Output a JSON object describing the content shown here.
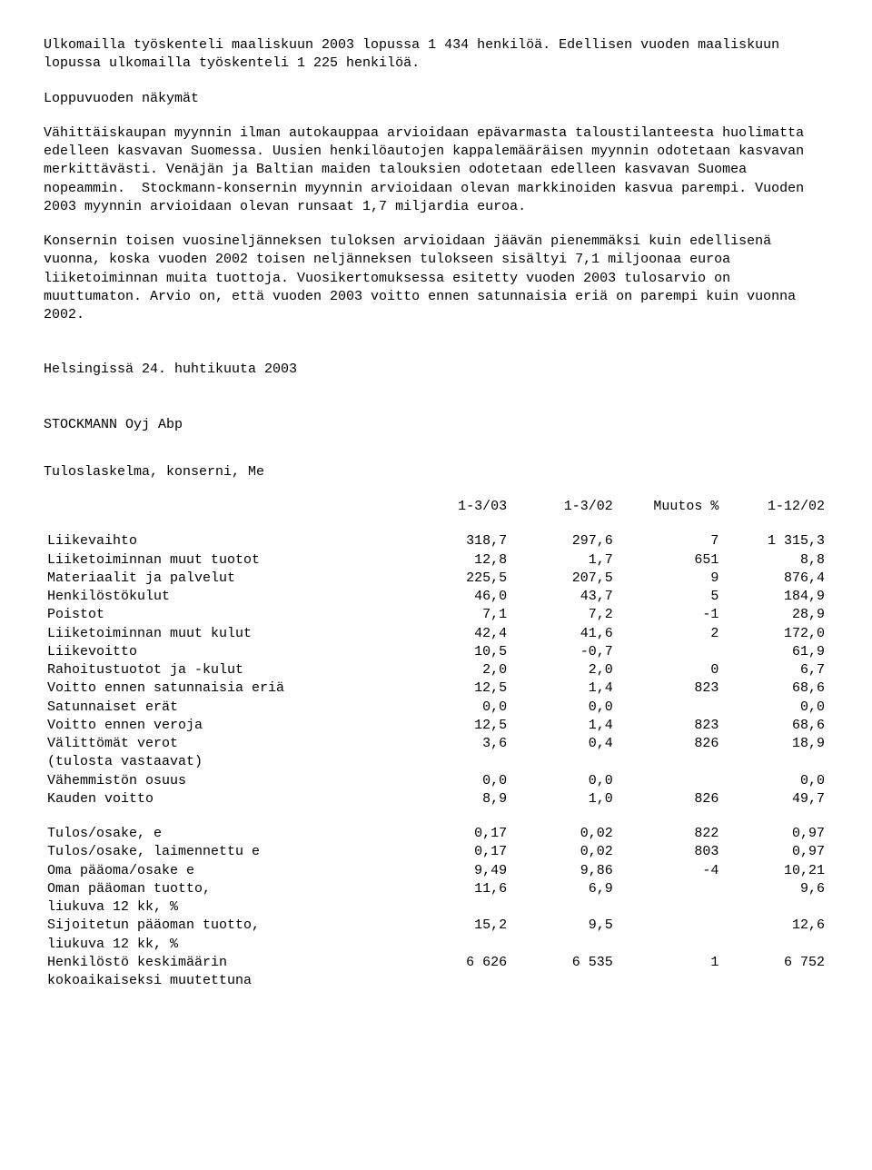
{
  "paragraphs": {
    "p1": "Ulkomailla työskenteli maaliskuun 2003 lopussa 1 434 henkilöä. Edellisen vuoden maaliskuun lopussa ulkomailla työskenteli 1 225 henkilöä.",
    "p2": "Loppuvuoden näkymät",
    "p3": "Vähittäiskaupan myynnin ilman autokauppaa arvioidaan epävarmasta taloustilanteesta huolimatta edelleen kasvavan Suomessa. Uusien henkilöautojen kappalemääräisen myynnin odotetaan kasvavan merkittävästi. Venäjän ja Baltian maiden talouksien odotetaan edelleen kasvavan Suomea nopeammin.  Stockmann-konsernin myynnin arvioidaan olevan markkinoiden kasvua parempi. Vuoden 2003 myynnin arvioidaan olevan runsaat 1,7 miljardia euroa.",
    "p4": "Konsernin toisen vuosineljänneksen tuloksen arvioidaan jäävän pienemmäksi kuin edellisenä vuonna, koska vuoden 2002 toisen neljänneksen tulokseen sisältyi 7,1 miljoonaa euroa liiketoiminnan muita tuottoja. Vuosikertomuksessa esitetty vuoden 2003 tulosarvio on muuttumaton. Arvio on, että vuoden 2003 voitto ennen satunnaisia eriä on parempi kuin vuonna 2002.",
    "sig1": "Helsingissä 24. huhtikuuta 2003",
    "sig2": "STOCKMANN Oyj Abp",
    "tabletitle": "Tuloslaskelma, konserni, Me"
  },
  "table": {
    "headers": [
      "",
      "1-3/03",
      "1-3/02",
      "Muutos %",
      "1-12/02"
    ],
    "rows": [
      [
        "Liikevaihto",
        "318,7",
        "297,6",
        "7",
        "1 315,3"
      ],
      [
        "Liiketoiminnan muut tuotot",
        "12,8",
        "1,7",
        "651",
        "8,8"
      ],
      [
        "Materiaalit ja palvelut",
        "225,5",
        "207,5",
        "9",
        "876,4"
      ],
      [
        "Henkilöstökulut",
        "46,0",
        "43,7",
        "5",
        "184,9"
      ],
      [
        "Poistot",
        "7,1",
        "7,2",
        "-1",
        "28,9"
      ],
      [
        "Liiketoiminnan muut kulut",
        "42,4",
        "41,6",
        "2",
        "172,0"
      ],
      [
        "Liikevoitto",
        "10,5",
        "-0,7",
        "",
        "61,9"
      ],
      [
        "Rahoitustuotot ja -kulut",
        "2,0",
        "2,0",
        "0",
        "6,7"
      ],
      [
        "Voitto ennen satunnaisia eriä",
        "12,5",
        "1,4",
        "823",
        "68,6"
      ],
      [
        "Satunnaiset erät",
        "0,0",
        "0,0",
        "",
        "0,0"
      ],
      [
        "Voitto ennen veroja",
        "12,5",
        "1,4",
        "823",
        "68,6"
      ],
      [
        "Välittömät verot",
        "3,6",
        "0,4",
        "826",
        "18,9"
      ],
      [
        "(tulosta vastaavat)",
        "",
        "",
        "",
        ""
      ],
      [
        "Vähemmistön osuus",
        "0,0",
        "0,0",
        "",
        "0,0"
      ],
      [
        "Kauden voitto",
        "8,9",
        "1,0",
        "826",
        "49,7"
      ]
    ],
    "rows2": [
      [
        "Tulos/osake, e",
        "0,17",
        "0,02",
        "822",
        "0,97"
      ],
      [
        "Tulos/osake, laimennettu e",
        "0,17",
        "0,02",
        "803",
        "0,97"
      ],
      [
        "Oma pääoma/osake e",
        "9,49",
        "9,86",
        "-4",
        "10,21"
      ],
      [
        "Oman pääoman tuotto,",
        "11,6",
        "6,9",
        "",
        "9,6"
      ],
      [
        "liukuva 12 kk, %",
        "",
        "",
        "",
        ""
      ],
      [
        "Sijoitetun pääoman tuotto,",
        "15,2",
        "9,5",
        "",
        "12,6"
      ],
      [
        "liukuva 12 kk, %",
        "",
        "",
        "",
        ""
      ],
      [
        "Henkilöstö keskimäärin",
        "6 626",
        "6 535",
        "1",
        "6 752"
      ],
      [
        "kokoaikaiseksi muutettuna",
        "",
        "",
        "",
        ""
      ]
    ]
  }
}
